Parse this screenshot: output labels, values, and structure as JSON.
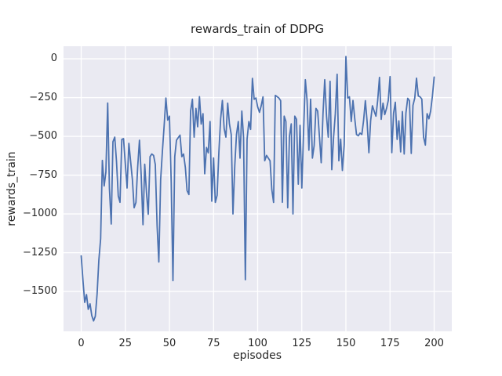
{
  "figure": {
    "title": "rewards_train of DDPG",
    "x_axis_label": "episodes",
    "y_axis_label": "rewards_train",
    "x_tick_labels": [
      "0",
      "25",
      "50",
      "75",
      "100",
      "125",
      "150",
      "175",
      "200"
    ],
    "y_tick_labels": [
      "0",
      "−250",
      "−500",
      "−750",
      "−1000",
      "−1250",
      "−1500"
    ]
  },
  "style": {
    "figure_bg_color": "#ffffff",
    "plot_bg_color": "#eaeaf2",
    "grid_color": "#ffffff",
    "line_color": "#4c72b0",
    "text_color": "#262626"
  },
  "chart_data": {
    "type": "line",
    "title": "rewards_train of DDPG",
    "xlabel": "episodes",
    "ylabel": "rewards_train",
    "xlim": [
      -10,
      210
    ],
    "ylim": [
      -1757,
      81
    ],
    "x_ticks": [
      0,
      25,
      50,
      75,
      100,
      125,
      150,
      175,
      200
    ],
    "y_ticks": [
      0,
      -250,
      -500,
      -750,
      -1000,
      -1250,
      -1500
    ],
    "grid": true,
    "legend": false,
    "x_start": 0,
    "x_step": 1,
    "series": [
      {
        "name": "rewards_train",
        "color": "#4c72b0",
        "values": [
          -1270,
          -1430,
          -1570,
          -1520,
          -1615,
          -1580,
          -1655,
          -1690,
          -1660,
          -1515,
          -1300,
          -1160,
          -655,
          -820,
          -730,
          -285,
          -835,
          -1065,
          -535,
          -505,
          -660,
          -885,
          -925,
          -520,
          -515,
          -680,
          -833,
          -545,
          -660,
          -780,
          -960,
          -926,
          -699,
          -525,
          -750,
          -1070,
          -680,
          -867,
          -1002,
          -631,
          -614,
          -623,
          -682,
          -1078,
          -1310,
          -780,
          -600,
          -429,
          -253,
          -395,
          -370,
          -800,
          -1430,
          -631,
          -525,
          -508,
          -492,
          -631,
          -614,
          -700,
          -850,
          -875,
          -337,
          -261,
          -505,
          -320,
          -438,
          -244,
          -421,
          -354,
          -741,
          -572,
          -606,
          -404,
          -918,
          -639,
          -926,
          -880,
          -606,
          -387,
          -269,
          -450,
          -505,
          -286,
          -420,
          -488,
          -1000,
          -690,
          -488,
          -404,
          -640,
          -337,
          -505,
          -1424,
          -518,
          -404,
          -455,
          -126,
          -261,
          -253,
          -310,
          -345,
          -303,
          -245,
          -657,
          -623,
          -640,
          -657,
          -842,
          -926,
          -236,
          -244,
          -253,
          -270,
          -925,
          -370,
          -404,
          -960,
          -500,
          -420,
          -1000,
          -370,
          -390,
          -808,
          -429,
          -833,
          -471,
          -135,
          -269,
          -589,
          -261,
          -640,
          -560,
          -320,
          -337,
          -505,
          -670,
          -354,
          -135,
          -370,
          -505,
          -145,
          -715,
          -505,
          -354,
          -100,
          -657,
          -518,
          -720,
          -556,
          15,
          -253,
          -245,
          -404,
          -269,
          -387,
          -488,
          -496,
          -479,
          -488,
          -400,
          -270,
          -404,
          -605,
          -400,
          -303,
          -337,
          -370,
          -269,
          -120,
          -390,
          -286,
          -360,
          -320,
          -269,
          -115,
          -605,
          -350,
          -280,
          -520,
          -400,
          -600,
          -340,
          -614,
          -350,
          -255,
          -270,
          -610,
          -300,
          -253,
          -125,
          -240,
          -245,
          -260,
          -505,
          -556,
          -354,
          -387,
          -337,
          -240,
          -118
        ]
      }
    ]
  }
}
